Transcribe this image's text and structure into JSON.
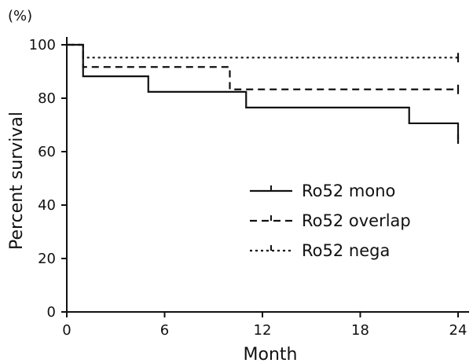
{
  "chart_data": {
    "type": "line",
    "step": true,
    "title": "",
    "xlabel": "Month",
    "ylabel": "Percent survival",
    "y_unit": "(%)",
    "xlim": [
      0,
      24
    ],
    "ylim": [
      0,
      100
    ],
    "x_ticks": [
      0,
      6,
      12,
      18,
      24
    ],
    "y_ticks": [
      0,
      20,
      40,
      60,
      80,
      100
    ],
    "grid": false,
    "legend_position": "center-right",
    "series": [
      {
        "name": "Ro52 mono",
        "style": "solid",
        "points": [
          [
            0,
            100
          ],
          [
            1,
            88.2
          ],
          [
            5,
            82.4
          ],
          [
            11,
            76.5
          ],
          [
            21,
            70.6
          ],
          [
            24,
            64.7
          ]
        ],
        "censor_x": [
          24
        ]
      },
      {
        "name": "Ro52 overlap",
        "style": "dashed",
        "points": [
          [
            0,
            100
          ],
          [
            1,
            91.7
          ],
          [
            10,
            83.3
          ],
          [
            24,
            83.3
          ]
        ],
        "censor_x": [
          24
        ]
      },
      {
        "name": "Ro52 nega",
        "style": "dotted",
        "points": [
          [
            0,
            100
          ],
          [
            1,
            95.2
          ],
          [
            24,
            95.2
          ]
        ],
        "censor_x": [
          24
        ]
      }
    ]
  }
}
